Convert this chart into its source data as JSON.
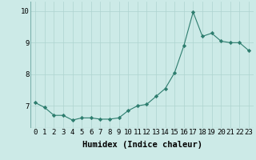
{
  "xlabel": "Humidex (Indice chaleur)",
  "x": [
    0,
    1,
    2,
    3,
    4,
    5,
    6,
    7,
    8,
    9,
    10,
    11,
    12,
    13,
    14,
    15,
    16,
    17,
    18,
    19,
    20,
    21,
    22,
    23
  ],
  "y": [
    7.1,
    6.95,
    6.7,
    6.7,
    6.55,
    6.62,
    6.62,
    6.58,
    6.58,
    6.62,
    6.85,
    7.0,
    7.05,
    7.3,
    7.55,
    8.05,
    8.9,
    9.97,
    9.2,
    9.3,
    9.05,
    9.0,
    9.0,
    8.75
  ],
  "ylim": [
    6.3,
    10.3
  ],
  "yticks": [
    7,
    8,
    9,
    10
  ],
  "xlim": [
    -0.5,
    23.5
  ],
  "line_color": "#2d7d6e",
  "marker": "D",
  "marker_size": 2.2,
  "bg_color": "#cceae7",
  "grid_color": "#aed4d0",
  "tick_label_fontsize": 6.5,
  "xlabel_fontsize": 7.5
}
